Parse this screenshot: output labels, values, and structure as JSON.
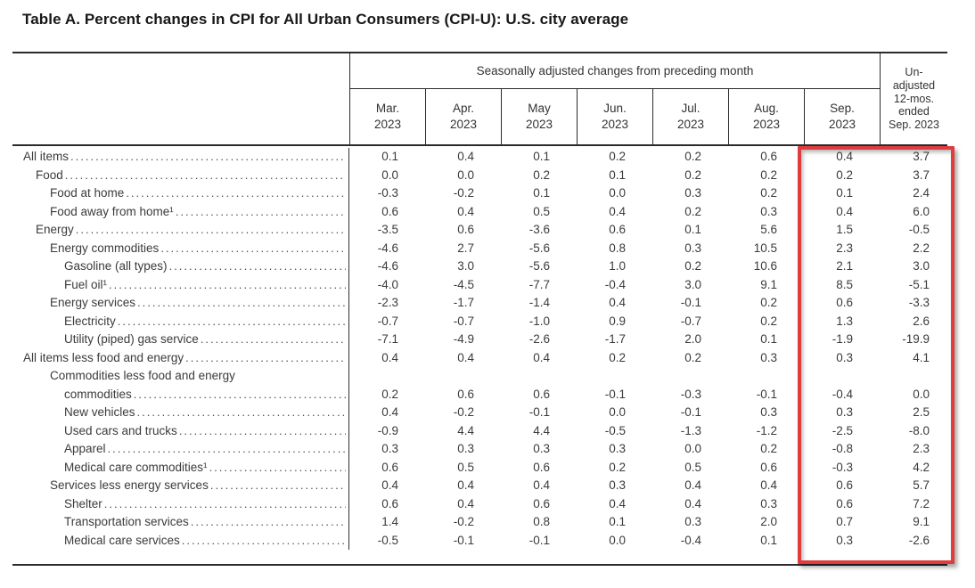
{
  "title": "Table A. Percent changes in CPI for All Urban Consumers (CPI-U): U.S. city average",
  "table": {
    "group_header": "Seasonally adjusted changes from preceding month",
    "columns": [
      "Mar.\n2023",
      "Apr.\n2023",
      "May\n2023",
      "Jun.\n2023",
      "Jul.\n2023",
      "Aug.\n2023",
      "Sep.\n2023"
    ],
    "last_column_header": "Un-\nadjusted\n12-mos.\nended\nSep. 2023",
    "rows": [
      {
        "label": "All items",
        "indent": 0,
        "values": [
          "0.1",
          "0.4",
          "0.1",
          "0.2",
          "0.2",
          "0.6",
          "0.4",
          "3.7"
        ]
      },
      {
        "label": "Food",
        "indent": 1,
        "values": [
          "0.0",
          "0.0",
          "0.2",
          "0.1",
          "0.2",
          "0.2",
          "0.2",
          "3.7"
        ]
      },
      {
        "label": "Food at home",
        "indent": 2,
        "values": [
          "-0.3",
          "-0.2",
          "0.1",
          "0.0",
          "0.3",
          "0.2",
          "0.1",
          "2.4"
        ]
      },
      {
        "label": "Food away from home¹",
        "indent": 2,
        "values": [
          "0.6",
          "0.4",
          "0.5",
          "0.4",
          "0.2",
          "0.3",
          "0.4",
          "6.0"
        ]
      },
      {
        "label": "Energy",
        "indent": 1,
        "values": [
          "-3.5",
          "0.6",
          "-3.6",
          "0.6",
          "0.1",
          "5.6",
          "1.5",
          "-0.5"
        ]
      },
      {
        "label": "Energy commodities",
        "indent": 2,
        "values": [
          "-4.6",
          "2.7",
          "-5.6",
          "0.8",
          "0.3",
          "10.5",
          "2.3",
          "2.2"
        ]
      },
      {
        "label": "Gasoline (all types)",
        "indent": 3,
        "values": [
          "-4.6",
          "3.0",
          "-5.6",
          "1.0",
          "0.2",
          "10.6",
          "2.1",
          "3.0"
        ]
      },
      {
        "label": "Fuel oil¹",
        "indent": 3,
        "values": [
          "-4.0",
          "-4.5",
          "-7.7",
          "-0.4",
          "3.0",
          "9.1",
          "8.5",
          "-5.1"
        ]
      },
      {
        "label": "Energy services",
        "indent": 2,
        "values": [
          "-2.3",
          "-1.7",
          "-1.4",
          "0.4",
          "-0.1",
          "0.2",
          "0.6",
          "-3.3"
        ]
      },
      {
        "label": "Electricity",
        "indent": 3,
        "values": [
          "-0.7",
          "-0.7",
          "-1.0",
          "0.9",
          "-0.7",
          "0.2",
          "1.3",
          "2.6"
        ]
      },
      {
        "label": "Utility (piped) gas service",
        "indent": 3,
        "values": [
          "-7.1",
          "-4.9",
          "-2.6",
          "-1.7",
          "2.0",
          "0.1",
          "-1.9",
          "-19.9"
        ]
      },
      {
        "label": "All items less food and energy",
        "indent": 0,
        "values": [
          "0.4",
          "0.4",
          "0.4",
          "0.2",
          "0.2",
          "0.3",
          "0.3",
          "4.1"
        ]
      },
      {
        "label": "Commodities less food and energy",
        "label2": "commodities",
        "indent": 2,
        "values": [
          "0.2",
          "0.6",
          "0.6",
          "-0.1",
          "-0.3",
          "-0.1",
          "-0.4",
          "0.0"
        ]
      },
      {
        "label": "New vehicles",
        "indent": 3,
        "values": [
          "0.4",
          "-0.2",
          "-0.1",
          "0.0",
          "-0.1",
          "0.3",
          "0.3",
          "2.5"
        ]
      },
      {
        "label": "Used cars and trucks",
        "indent": 3,
        "values": [
          "-0.9",
          "4.4",
          "4.4",
          "-0.5",
          "-1.3",
          "-1.2",
          "-2.5",
          "-8.0"
        ]
      },
      {
        "label": "Apparel",
        "indent": 3,
        "values": [
          "0.3",
          "0.3",
          "0.3",
          "0.3",
          "0.0",
          "0.2",
          "-0.8",
          "2.3"
        ]
      },
      {
        "label": "Medical care commodities¹",
        "indent": 3,
        "values": [
          "0.6",
          "0.5",
          "0.6",
          "0.2",
          "0.5",
          "0.6",
          "-0.3",
          "4.2"
        ]
      },
      {
        "label": "Services less energy services",
        "indent": 2,
        "values": [
          "0.4",
          "0.4",
          "0.4",
          "0.3",
          "0.4",
          "0.4",
          "0.6",
          "5.7"
        ]
      },
      {
        "label": "Shelter",
        "indent": 3,
        "values": [
          "0.6",
          "0.4",
          "0.6",
          "0.4",
          "0.4",
          "0.3",
          "0.6",
          "7.2"
        ]
      },
      {
        "label": "Transportation services",
        "indent": 3,
        "values": [
          "1.4",
          "-0.2",
          "0.8",
          "0.1",
          "0.3",
          "2.0",
          "0.7",
          "9.1"
        ]
      },
      {
        "label": "Medical care services",
        "indent": 3,
        "values": [
          "-0.5",
          "-0.1",
          "-0.1",
          "0.0",
          "-0.4",
          "0.1",
          "0.3",
          "-2.6"
        ]
      }
    ]
  },
  "annotation": {
    "type": "red-highlight-box",
    "color": "#e23b3d",
    "highlighted_columns": [
      "Sep. 2023",
      "Un-adjusted 12-mos. ended Sep. 2023"
    ]
  }
}
